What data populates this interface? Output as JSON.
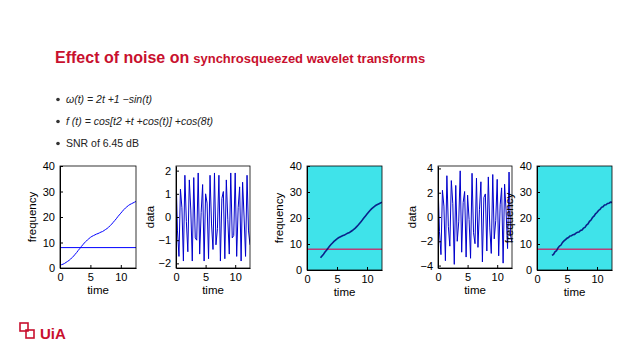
{
  "title_main": "Effect of noise on",
  "title_rest": "synchrosqueezed wavelet transforms",
  "bullets": [
    "ω(t) = 2t +1 −sin(t)",
    "f (t) = cos[t2 +t +cos(t)] +cos(8t)",
    "SNR of 6.45 dB"
  ],
  "logo": "UiA",
  "chart_data": [
    {
      "type": "line",
      "x_label": "time",
      "y_label": "frequency",
      "x": [
        0,
        0.25,
        0.5,
        0.75,
        1,
        1.25,
        1.5,
        1.75,
        2,
        2.25,
        2.5,
        2.75,
        3,
        3.25,
        3.5,
        3.75,
        4,
        4.25,
        4.5,
        4.75,
        5,
        5.25,
        5.5,
        5.75,
        6,
        6.25,
        6.5,
        6.75,
        7,
        7.25,
        7.5,
        7.75,
        8,
        8.25,
        8.5,
        8.75,
        9,
        9.25,
        9.5,
        9.75,
        10,
        10.25,
        10.5,
        10.75,
        11,
        11.25,
        11.5,
        11.75,
        12,
        12.25,
        12.5
      ],
      "series": [
        {
          "color": "#0000ff",
          "values": [
            1.0,
            1.3,
            1.5,
            1.8,
            2.2,
            2.6,
            3.0,
            3.5,
            4.1,
            4.7,
            5.4,
            6.1,
            6.9,
            7.6,
            8.4,
            9.1,
            9.8,
            10.4,
            11.0,
            11.5,
            12.0,
            12.4,
            12.7,
            13.0,
            13.3,
            13.5,
            13.8,
            14.1,
            14.3,
            14.7,
            15.1,
            15.5,
            16.0,
            16.6,
            17.2,
            17.9,
            18.6,
            19.3,
            20.1,
            20.8,
            21.5,
            22.2,
            22.9,
            23.5,
            24.0,
            24.5,
            24.9,
            25.2,
            25.5,
            25.8,
            26.1
          ]
        },
        {
          "color": "#0000ff",
          "x": [
            0,
            12.5
          ],
          "values": [
            8,
            8
          ]
        }
      ],
      "xlim": [
        0,
        12.5
      ],
      "ylim": [
        0,
        40
      ],
      "xticks": [
        0,
        5,
        10
      ],
      "yticks": [
        0,
        10,
        20,
        30,
        40
      ]
    },
    {
      "type": "line",
      "x_label": "time",
      "y_label": "data",
      "x": [
        0,
        0.25,
        0.5,
        0.75,
        1,
        1.25,
        1.5,
        1.75,
        2,
        2.25,
        2.5,
        2.75,
        3,
        3.25,
        3.5,
        3.75,
        4,
        4.25,
        4.5,
        4.75,
        5,
        5.25,
        5.5,
        5.75,
        6,
        6.25,
        6.5,
        6.75,
        7,
        7.25,
        7.5,
        7.75,
        8,
        8.25,
        8.5,
        8.75,
        9,
        9.25,
        9.5,
        9.75,
        10,
        10.25,
        10.5,
        10.75,
        11,
        11.25,
        11.5,
        11.75,
        12,
        12.25,
        12.5
      ],
      "series": [
        {
          "color": "#0000cc",
          "values": [
            1.9,
            -0.6,
            -1.7,
            1.2,
            0.4,
            -1.9,
            1.8,
            -0.2,
            -1.5,
            1.6,
            0.3,
            -1.9,
            1.7,
            -0.9,
            -1.0,
            1.9,
            -1.6,
            0.2,
            1.4,
            -1.9,
            1.0,
            0.6,
            -1.8,
            1.8,
            -0.3,
            -1.4,
            1.9,
            -1.2,
            -0.5,
            1.8,
            -1.9,
            0.8,
            1.1,
            -1.8,
            1.6,
            -0.1,
            -1.6,
            1.9,
            -0.9,
            -0.8,
            1.9,
            -1.7,
            0.4,
            1.3,
            -1.9,
            1.5,
            0.0,
            -1.7,
            1.8,
            -0.6,
            -1.2
          ]
        }
      ],
      "xlim": [
        0,
        12.5
      ],
      "ylim": [
        -2.2,
        2.2
      ],
      "xticks": [
        0,
        5,
        10
      ],
      "yticks": [
        {
          "value": -2,
          "label": "−2"
        },
        {
          "value": -1,
          "label": "−1"
        },
        0,
        1,
        2
      ]
    },
    {
      "type": "spectrogram",
      "x_label": "time",
      "y_label": "frequency",
      "x": [
        0,
        0.25,
        0.5,
        0.75,
        1,
        1.25,
        1.5,
        1.75,
        2,
        2.25,
        2.5,
        2.75,
        3,
        3.25,
        3.5,
        3.75,
        4,
        4.25,
        4.5,
        4.75,
        5,
        5.25,
        5.5,
        5.75,
        6,
        6.25,
        6.5,
        6.75,
        7,
        7.25,
        7.5,
        7.75,
        8,
        8.25,
        8.5,
        8.75,
        9,
        9.25,
        9.5,
        9.75,
        10,
        10.25,
        10.5,
        10.75,
        11,
        11.25,
        11.5,
        11.75,
        12,
        12.25,
        12.5
      ],
      "series": [
        {
          "color": "#cc2266",
          "x": [
            0,
            12.5
          ],
          "values": [
            8,
            8
          ]
        },
        {
          "color": "#00007a",
          "values": [
            null,
            null,
            null,
            null,
            null,
            null,
            null,
            null,
            null,
            4.7,
            5.4,
            6.1,
            6.9,
            7.6,
            8.4,
            9.1,
            9.8,
            10.4,
            11.0,
            11.5,
            12.0,
            12.4,
            12.7,
            13.0,
            13.3,
            13.5,
            13.8,
            14.1,
            14.3,
            14.7,
            15.1,
            15.5,
            16.0,
            16.6,
            17.2,
            17.9,
            18.6,
            19.3,
            20.1,
            20.8,
            21.5,
            22.2,
            22.9,
            23.5,
            24.0,
            24.5,
            24.9,
            25.2,
            25.5,
            25.8,
            26.1
          ]
        }
      ],
      "xlim": [
        0,
        12.5
      ],
      "ylim": [
        0,
        40
      ],
      "xticks": [
        0,
        5,
        10
      ],
      "yticks": [
        0,
        10,
        20,
        30,
        40
      ]
    },
    {
      "type": "line",
      "x_label": "time",
      "y_label": "data",
      "x": [
        0,
        0.25,
        0.5,
        0.75,
        1,
        1.25,
        1.5,
        1.75,
        2,
        2.25,
        2.5,
        2.75,
        3,
        3.25,
        3.5,
        3.75,
        4,
        4.25,
        4.5,
        4.75,
        5,
        5.25,
        5.5,
        5.75,
        6,
        6.25,
        6.5,
        6.75,
        7,
        7.25,
        7.5,
        7.75,
        8,
        8.25,
        8.5,
        8.75,
        9,
        9.25,
        9.5,
        9.75,
        10,
        10.25,
        10.5,
        10.75,
        11,
        11.25,
        11.5,
        11.75,
        12,
        12.25,
        12.5
      ],
      "series": [
        {
          "color": "#0000cc",
          "values": [
            2.8,
            -1.2,
            -3.1,
            2.2,
            0.9,
            -3.6,
            3.4,
            -0.8,
            -2.4,
            3.0,
            1.1,
            -3.9,
            2.6,
            -2.0,
            -0.4,
            3.8,
            -2.9,
            1.2,
            2.1,
            -3.3,
            1.8,
            -0.2,
            -3.4,
            3.6,
            -1.3,
            -2.2,
            3.2,
            -2.5,
            0.6,
            2.9,
            -3.7,
            1.6,
            1.9,
            -2.8,
            3.3,
            -0.9,
            -3.0,
            3.5,
            -1.8,
            -0.3,
            3.1,
            -3.2,
            1.0,
            2.4,
            -3.8,
            2.7,
            0.5,
            -2.6,
            3.7,
            -1.5,
            -2.1
          ]
        }
      ],
      "xlim": [
        0,
        12.5
      ],
      "ylim": [
        -4.2,
        4.2
      ],
      "xticks": [
        0,
        5,
        10
      ],
      "yticks": [
        {
          "value": -4,
          "label": "−4"
        },
        {
          "value": -2,
          "label": "−2"
        },
        0,
        2,
        4
      ]
    },
    {
      "type": "spectrogram",
      "x_label": "time",
      "y_label": "frequency",
      "x": [
        0,
        0.25,
        0.5,
        0.75,
        1,
        1.25,
        1.5,
        1.75,
        2,
        2.25,
        2.5,
        2.75,
        3,
        3.25,
        3.5,
        3.75,
        4,
        4.25,
        4.5,
        4.75,
        5,
        5.25,
        5.5,
        5.75,
        6,
        6.25,
        6.5,
        6.75,
        7,
        7.25,
        7.5,
        7.75,
        8,
        8.25,
        8.5,
        8.75,
        9,
        9.25,
        9.5,
        9.75,
        10,
        10.25,
        10.5,
        10.75,
        11,
        11.25,
        11.5,
        11.75,
        12,
        12.25,
        12.5
      ],
      "series": [
        {
          "color": "#cc2266",
          "x": [
            0,
            12.5
          ],
          "values": [
            8,
            8
          ]
        },
        {
          "color": "#00007a",
          "values": [
            null,
            null,
            null,
            null,
            null,
            null,
            null,
            null,
            null,
            null,
            5.6,
            6.0,
            7.0,
            7.4,
            8.5,
            9.2,
            9.6,
            10.6,
            11.2,
            11.7,
            12.2,
            12.5,
            13.1,
            13.2,
            13.6,
            13.7,
            14.2,
            14.5,
            14.6,
            15.2,
            15.4,
            16.1,
            16.4,
            17.3,
            17.7,
            18.7,
            19.2,
            20.2,
            20.7,
            21.6,
            22.1,
            22.9,
            23.3,
            24.1,
            24.3,
            25.0,
            25.1,
            25.6,
            25.7,
            26.1,
            26.0
          ]
        }
      ],
      "xlim": [
        0,
        12.5
      ],
      "ylim": [
        0,
        40
      ],
      "xticks": [
        0,
        5,
        10
      ],
      "yticks": [
        0,
        10,
        20,
        30,
        40
      ]
    }
  ]
}
